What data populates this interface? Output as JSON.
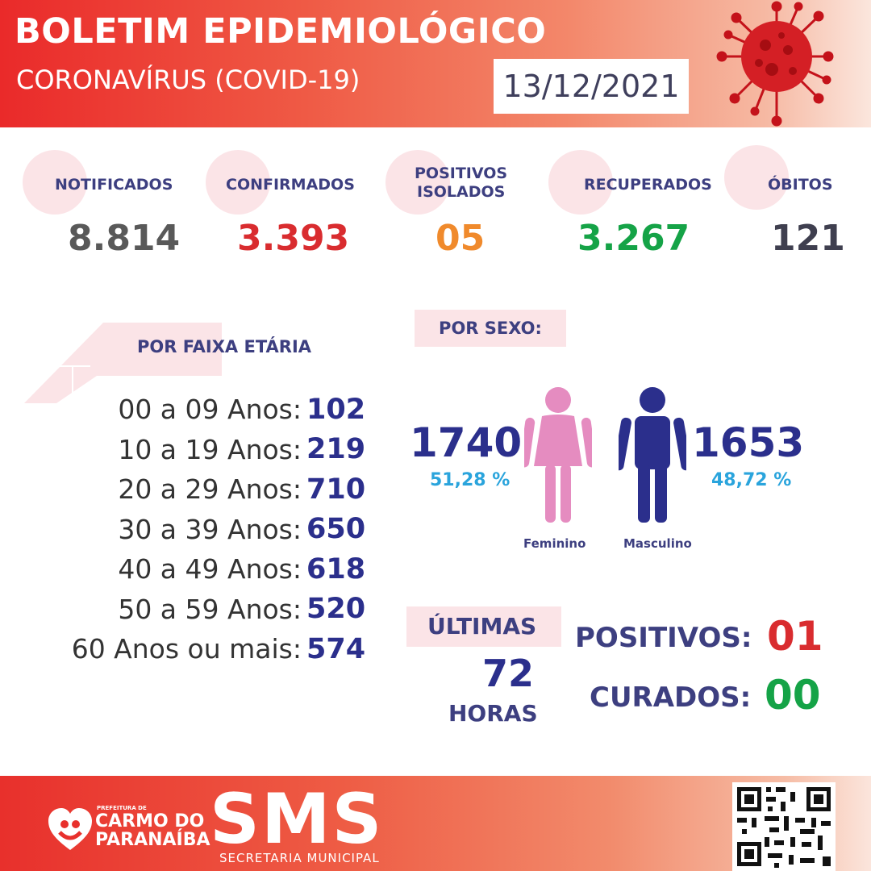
{
  "header": {
    "title": "BOLETIM EPIDEMIOLÓGICO",
    "subtitle": "CORONAVÍRUS (COVID-19)",
    "date": "13/12/2021",
    "virus_icon": "virus-icon"
  },
  "stats": [
    {
      "label": "NOTIFICADOS",
      "value": "8.814",
      "color": "#595959"
    },
    {
      "label": "CONFIRMADOS",
      "value": "3.393",
      "color": "#d92c2f"
    },
    {
      "label_line1": "POSITIVOS",
      "label_line2": "ISOLADOS",
      "value": "05",
      "color": "#f08a2c"
    },
    {
      "label": "RECUPERADOS",
      "value": "3.267",
      "color": "#15a347"
    },
    {
      "label": "ÓBITOS",
      "value": "121",
      "color": "#3f3f4f"
    }
  ],
  "age": {
    "title": "POR FAIXA ETÁRIA",
    "rows": [
      {
        "label": "00 a 09 Anos:",
        "value": "102"
      },
      {
        "label": "10 a 19 Anos:",
        "value": "219"
      },
      {
        "label": "20 a 29 Anos:",
        "value": "710"
      },
      {
        "label": "30 a 39 Anos:",
        "value": "650"
      },
      {
        "label": "40 a 49 Anos:",
        "value": "618"
      },
      {
        "label": "50 a 59 Anos:",
        "value": "520"
      },
      {
        "label": "60 Anos ou mais:",
        "value": "574"
      }
    ]
  },
  "sex": {
    "title": "POR SEXO:",
    "female": {
      "count": "1740",
      "percent": "51,28 %",
      "label": "Feminino",
      "color": "#e58cc0"
    },
    "male": {
      "count": "1653",
      "percent": "48,72 %",
      "label": "Masculino",
      "color": "#2b2f8c"
    }
  },
  "last72": {
    "label": "ÚLTIMAS",
    "hours_num": "72",
    "hours_label": "HORAS",
    "positivos_label": "POSITIVOS:",
    "positivos_value": "01",
    "curados_label": "CURADOS:",
    "curados_value": "00"
  },
  "footer": {
    "pref_label": "PREFEITURA DE",
    "logo_line1": "CARMO DO",
    "logo_line2": "PARANAÍBA",
    "sms": "SMS",
    "sms_sub": "SECRETARIA MUNICIPAL",
    "qr_icon": "qr-code-icon"
  }
}
